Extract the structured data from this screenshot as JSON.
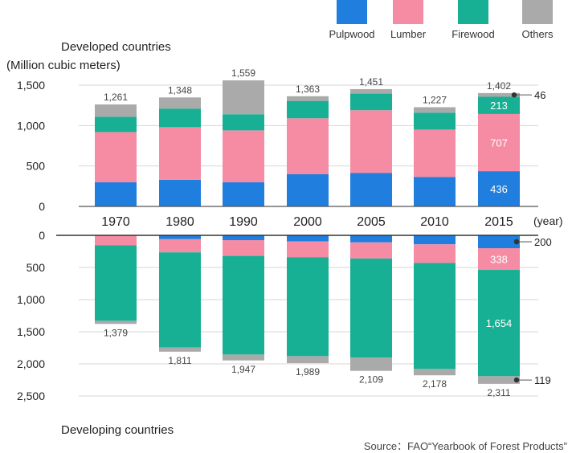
{
  "legend": [
    {
      "label": "Pulpwood",
      "color": "#1f7ede"
    },
    {
      "label": "Lumber",
      "color": "#f58ca4"
    },
    {
      "label": "Firewood",
      "color": "#17b094"
    },
    {
      "label": "Others",
      "color": "#aaaaaa"
    }
  ],
  "top_label": "Developed countries",
  "unit_label": "(Million cubic meters)",
  "year_unit": "(year)",
  "bottom_label": "Developing countries",
  "source": "Source：FAO“Yearbook of Forest Products”",
  "chart_data": [
    {
      "type": "bar",
      "stacked": true,
      "title": "Developed countries",
      "ylabel": "(Million cubic meters)",
      "categories": [
        "1970",
        "1980",
        "1990",
        "2000",
        "2005",
        "2010",
        "2015"
      ],
      "ylim": [
        0,
        1500
      ],
      "yticks": [
        "0",
        "500",
        "1,000",
        "1,500"
      ],
      "series": [
        {
          "name": "Pulpwood",
          "values": [
            300,
            330,
            300,
            400,
            415,
            365,
            436
          ]
        },
        {
          "name": "Lumber",
          "values": [
            620,
            650,
            640,
            690,
            775,
            585,
            707
          ]
        },
        {
          "name": "Firewood",
          "values": [
            190,
            230,
            200,
            215,
            205,
            210,
            213
          ]
        },
        {
          "name": "Others",
          "values": [
            151,
            138,
            419,
            58,
            56,
            67,
            46
          ]
        }
      ],
      "totals": [
        "1,261",
        "1,348",
        "1,559",
        "1,363",
        "1,451",
        "1,227",
        "1,402"
      ],
      "segment_labels": {
        "Pulpwood": "436",
        "Lumber": "707",
        "Firewood": "213",
        "Others": "46"
      }
    },
    {
      "type": "bar",
      "stacked": true,
      "inverted": true,
      "title": "Developing countries",
      "categories": [
        "1970",
        "1980",
        "1990",
        "2000",
        "2005",
        "2010",
        "2015"
      ],
      "ylim": [
        0,
        2500
      ],
      "yticks": [
        "0",
        "500",
        "1,000",
        "1,500",
        "2,000",
        "2,500"
      ],
      "series": [
        {
          "name": "Pulpwood",
          "values": [
            10,
            60,
            75,
            95,
            110,
            140,
            200
          ]
        },
        {
          "name": "Lumber",
          "values": [
            145,
            205,
            245,
            245,
            250,
            290,
            338
          ]
        },
        {
          "name": "Firewood",
          "values": [
            1175,
            1480,
            1535,
            1540,
            1540,
            1650,
            1654
          ]
        },
        {
          "name": "Others",
          "values": [
            49,
            66,
            92,
            109,
            209,
            98,
            119
          ]
        }
      ],
      "totals": [
        "1,379",
        "1,811",
        "1,947",
        "1,989",
        "2,109",
        "2,178",
        "2,311"
      ],
      "segment_labels": {
        "Pulpwood": "200",
        "Lumber": "338",
        "Firewood": "1,654",
        "Others": "119"
      }
    }
  ]
}
